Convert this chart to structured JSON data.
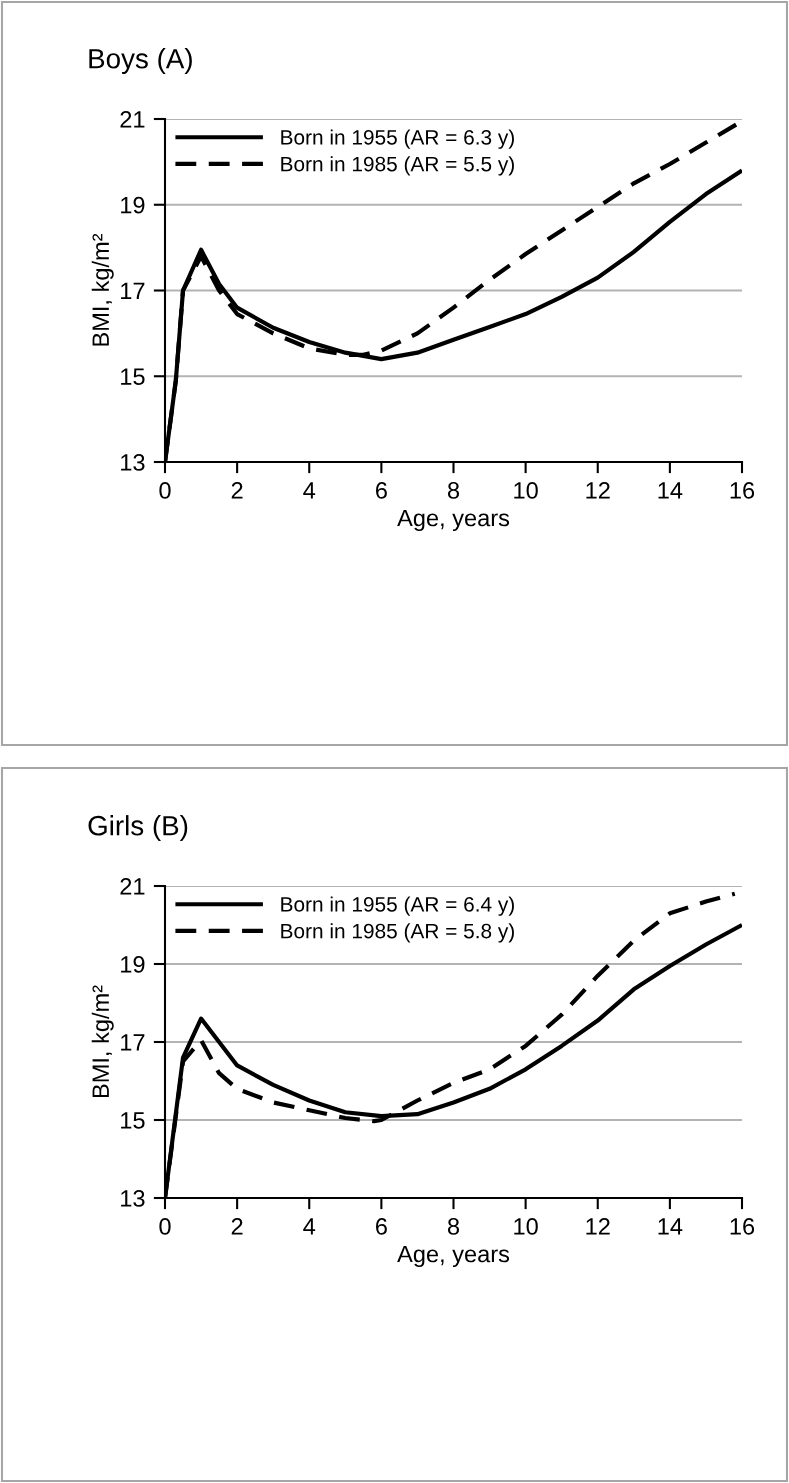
{
  "chart_data": [
    {
      "type": "line",
      "title": "Boys (A)",
      "xlabel": "Age, years",
      "ylabel": "BMI, kg/m²",
      "xlim": [
        0,
        16
      ],
      "xticks": [
        0,
        2,
        4,
        6,
        8,
        10,
        12,
        14,
        16
      ],
      "ylim": [
        13,
        21
      ],
      "yticks": [
        13,
        15,
        17,
        19,
        21
      ],
      "grid": "y",
      "legend": "top left",
      "marker": "none",
      "series": [
        {
          "name": "Born in 1955 (AR = 6.3 y)",
          "color": "#000000",
          "line_style": "solid",
          "x": [
            0,
            0.3,
            0.5,
            1,
            1.5,
            2,
            3,
            4,
            5,
            6,
            7,
            8,
            9,
            10,
            11,
            12,
            13,
            14,
            15,
            16
          ],
          "values": [
            13,
            14.9,
            17.0,
            17.95,
            17.15,
            16.6,
            16.13,
            15.8,
            15.55,
            15.4,
            15.55,
            15.85,
            16.15,
            16.45,
            16.85,
            17.3,
            17.9,
            18.6,
            19.25,
            19.8
          ]
        },
        {
          "name": "Born in 1985 (AR = 5.5 y)",
          "color": "#000000",
          "line_style": "dashed",
          "x": [
            0,
            0.3,
            0.5,
            1,
            1.5,
            2,
            3,
            4,
            5,
            5.5,
            6,
            7,
            8,
            9,
            10,
            11,
            12,
            13,
            14,
            15,
            16
          ],
          "values": [
            13,
            14.9,
            17.0,
            17.8,
            17.0,
            16.45,
            16.0,
            15.65,
            15.5,
            15.5,
            15.6,
            16.0,
            16.6,
            17.25,
            17.85,
            18.4,
            18.95,
            19.5,
            19.95,
            20.45,
            20.95
          ]
        }
      ]
    },
    {
      "type": "line",
      "title": "Girls (B)",
      "xlabel": "Age, years",
      "ylabel": "BMI, kg/m²",
      "xlim": [
        0,
        16
      ],
      "xticks": [
        0,
        2,
        4,
        6,
        8,
        10,
        12,
        14,
        16
      ],
      "ylim": [
        13,
        21
      ],
      "yticks": [
        13,
        15,
        17,
        19,
        21
      ],
      "grid": "y",
      "legend": "top left",
      "marker": "none",
      "series": [
        {
          "name": "Born in 1955 (AR = 6.4 y)",
          "color": "#000000",
          "line_style": "solid",
          "x": [
            0,
            0.5,
            1,
            1.5,
            2,
            3,
            4,
            5,
            6,
            7,
            8,
            9,
            10,
            11,
            12,
            13,
            14,
            15,
            16
          ],
          "values": [
            13,
            16.6,
            17.6,
            17.0,
            16.4,
            15.9,
            15.5,
            15.2,
            15.1,
            15.15,
            15.45,
            15.8,
            16.3,
            16.9,
            17.55,
            18.35,
            18.95,
            19.5,
            20.0
          ]
        },
        {
          "name": "Born in 1985 (AR = 5.8 y)",
          "color": "#000000",
          "line_style": "dashed",
          "x": [
            0,
            0.5,
            1,
            1.5,
            2,
            3,
            4,
            5,
            5.8,
            6,
            7,
            8,
            9,
            10,
            11,
            12,
            13,
            14,
            15,
            15.8
          ],
          "values": [
            13,
            16.5,
            17.05,
            16.2,
            15.8,
            15.45,
            15.25,
            15.05,
            14.97,
            15.0,
            15.5,
            15.95,
            16.3,
            16.9,
            17.7,
            18.7,
            19.6,
            20.3,
            20.6,
            20.8
          ]
        }
      ]
    }
  ]
}
